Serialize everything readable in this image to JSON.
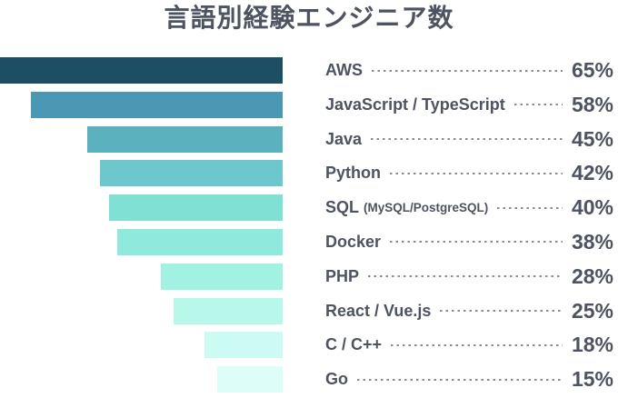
{
  "title": "言語別経験エンジニア数",
  "colors": {
    "text": "#4d5360",
    "leader_line": "#868b95",
    "background": "#ffffff"
  },
  "chart_data": {
    "type": "bar",
    "orientation": "horizontal",
    "title": "言語別経験エンジニア数",
    "unit": "%",
    "value_range": [
      0,
      65
    ],
    "grid": false,
    "legend": false,
    "bars_right_aligned": true,
    "categories": [
      "AWS",
      "JavaScript / TypeScript",
      "Java",
      "Python",
      "SQL (MySQL/PostgreSQL)",
      "Docker",
      "PHP",
      "React / Vue.js",
      "C / C++",
      "Go"
    ],
    "values": [
      65,
      58,
      45,
      42,
      40,
      38,
      28,
      25,
      18,
      15
    ],
    "items": [
      {
        "label": "AWS",
        "sublabel": "",
        "value": 65,
        "display": "65%",
        "color": "#1e4e63"
      },
      {
        "label": "JavaScript / TypeScript",
        "sublabel": "",
        "value": 58,
        "display": "58%",
        "color": "#4a98b4"
      },
      {
        "label": "Java",
        "sublabel": "",
        "value": 45,
        "display": "45%",
        "color": "#5bb1bd"
      },
      {
        "label": "Python",
        "sublabel": "",
        "value": 42,
        "display": "42%",
        "color": "#6ec7cd"
      },
      {
        "label": "SQL",
        "sublabel": "(MySQL/PostgreSQL)",
        "value": 40,
        "display": "40%",
        "color": "#7fe0d3"
      },
      {
        "label": "Docker",
        "sublabel": "",
        "value": 38,
        "display": "38%",
        "color": "#8fe9dc"
      },
      {
        "label": "PHP",
        "sublabel": "",
        "value": 28,
        "display": "28%",
        "color": "#a2f2e4"
      },
      {
        "label": "React / Vue.js",
        "sublabel": "",
        "value": 25,
        "display": "25%",
        "color": "#b7f8eb"
      },
      {
        "label": "C / C++",
        "sublabel": "",
        "value": 18,
        "display": "18%",
        "color": "#cbfbf2"
      },
      {
        "label": "Go",
        "sublabel": "",
        "value": 15,
        "display": "15%",
        "color": "#dcfdf8"
      }
    ]
  }
}
